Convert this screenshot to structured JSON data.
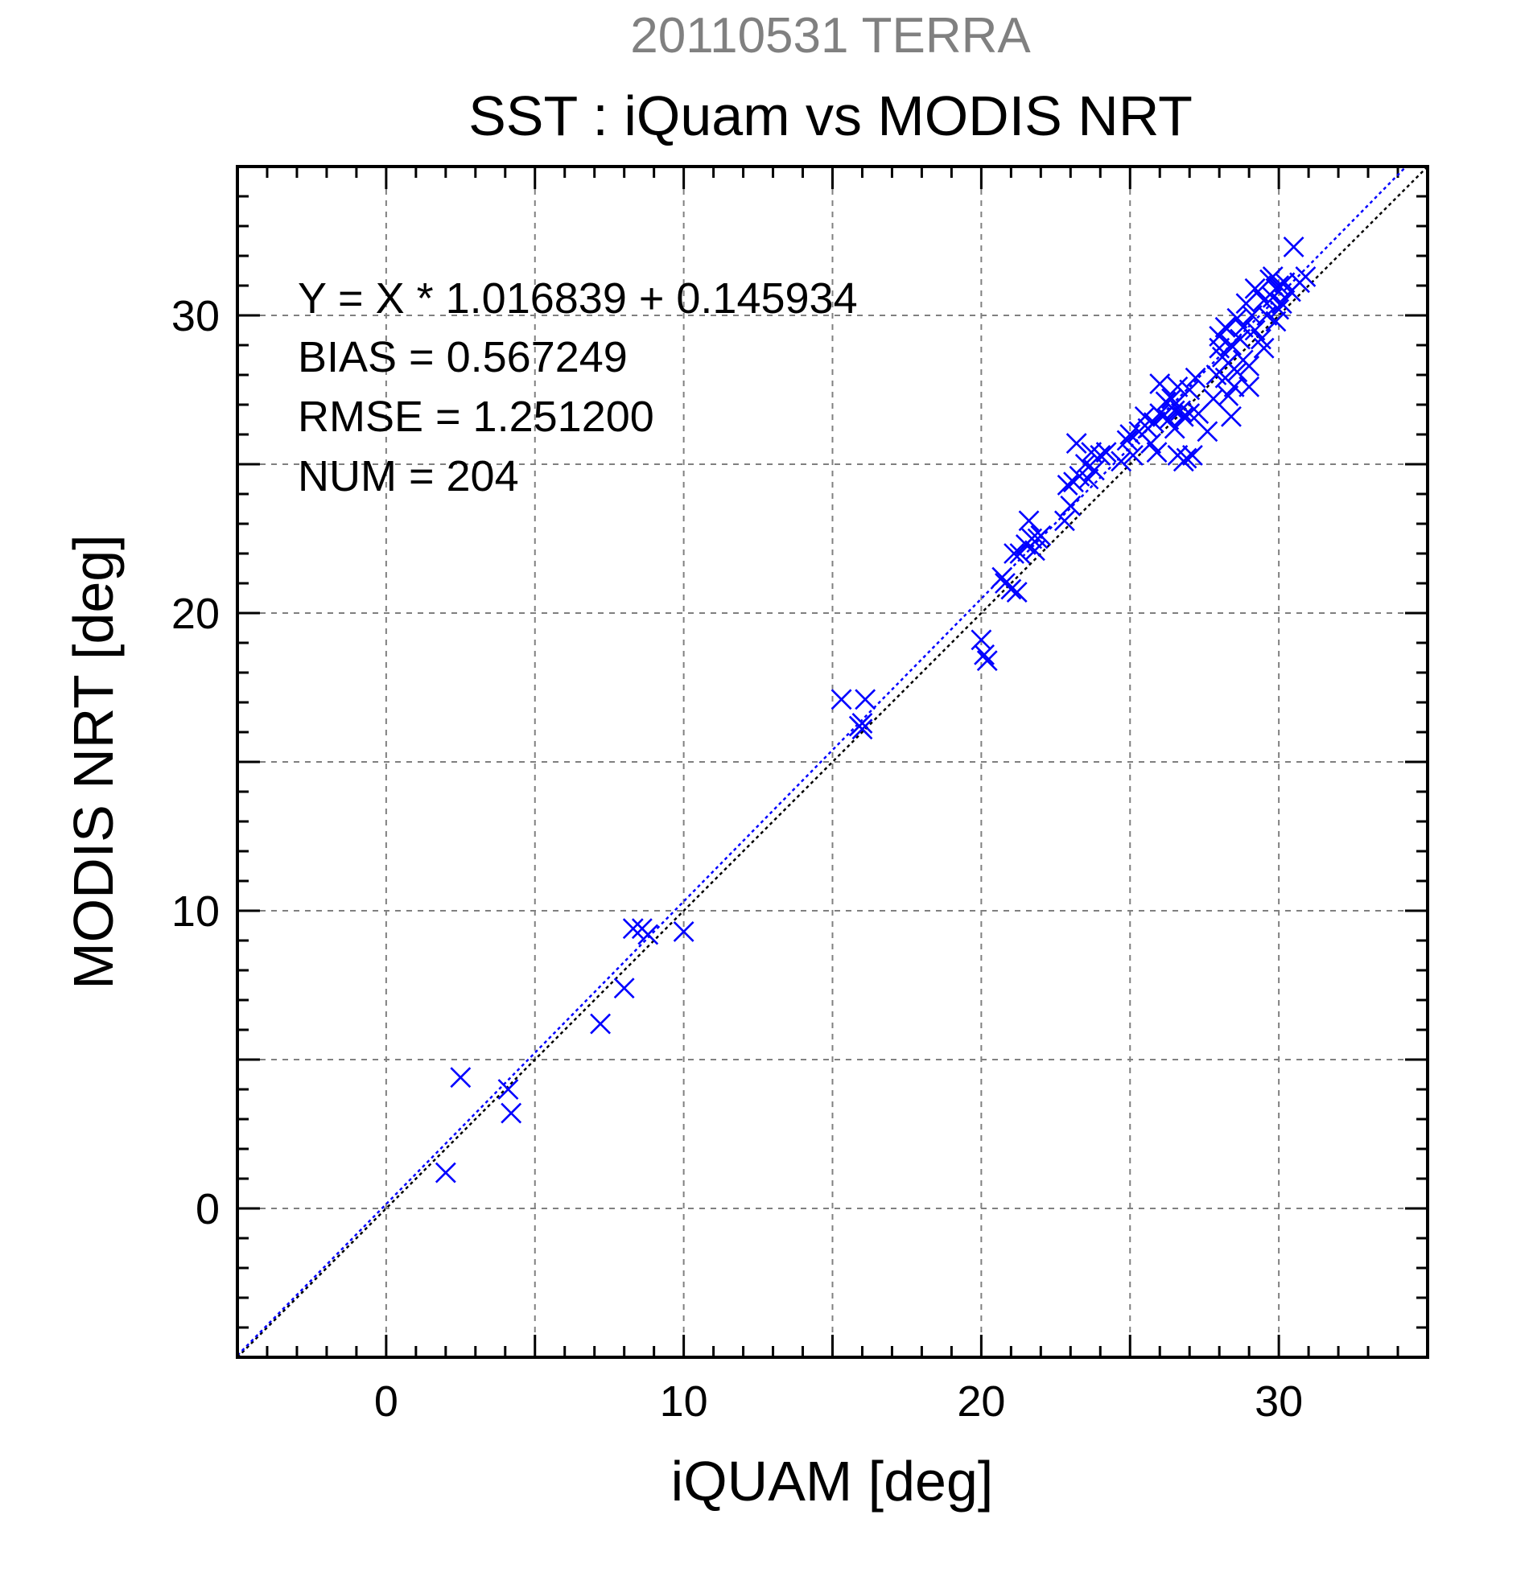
{
  "chart_data": {
    "type": "scatter",
    "date_title": "20110531 TERRA",
    "title": "SST : iQuam vs MODIS NRT",
    "xlabel": "iQUAM [deg]",
    "ylabel": "MODIS NRT [deg]",
    "xlim": [
      -5,
      35
    ],
    "ylim": [
      -5,
      35
    ],
    "xticks": [
      0,
      10,
      20,
      30
    ],
    "yticks": [
      0,
      10,
      20,
      30
    ],
    "grid": true,
    "stats": {
      "equation": "Y = X * 1.016839 + 0.145934",
      "bias": "BIAS = 0.567249",
      "rmse": "RMSE = 1.251200",
      "num": "NUM = 204"
    },
    "regression": {
      "slope": 1.016839,
      "intercept": 0.145934
    },
    "colors": {
      "points": "#0000ff",
      "regression": "#0000ff",
      "identity": "#000000",
      "grid": "#808080",
      "date_title": "#808080"
    },
    "points": [
      [
        2.0,
        1.2
      ],
      [
        2.5,
        4.4
      ],
      [
        4.1,
        4.0
      ],
      [
        4.2,
        3.2
      ],
      [
        7.2,
        6.2
      ],
      [
        8.0,
        7.4
      ],
      [
        8.3,
        9.4
      ],
      [
        8.6,
        9.4
      ],
      [
        8.8,
        9.2
      ],
      [
        10.0,
        9.3
      ],
      [
        15.3,
        17.1
      ],
      [
        15.9,
        16.2
      ],
      [
        16.0,
        16.3
      ],
      [
        16.1,
        17.1
      ],
      [
        16.0,
        16.1
      ],
      [
        20.0,
        19.1
      ],
      [
        20.1,
        18.6
      ],
      [
        20.2,
        18.4
      ],
      [
        20.7,
        21.2
      ],
      [
        20.8,
        21.0
      ],
      [
        21.0,
        20.8
      ],
      [
        21.2,
        20.7
      ],
      [
        21.1,
        22.0
      ],
      [
        21.3,
        22.0
      ],
      [
        21.5,
        22.3
      ],
      [
        21.6,
        23.1
      ],
      [
        21.7,
        22.5
      ],
      [
        21.8,
        22.1
      ],
      [
        21.9,
        22.5
      ],
      [
        22.0,
        22.6
      ],
      [
        22.8,
        23.1
      ],
      [
        23.0,
        23.6
      ],
      [
        22.9,
        24.3
      ],
      [
        23.1,
        24.4
      ],
      [
        23.3,
        24.6
      ],
      [
        23.2,
        25.7
      ],
      [
        23.5,
        25.0
      ],
      [
        23.6,
        24.5
      ],
      [
        23.7,
        25.4
      ],
      [
        23.8,
        24.8
      ],
      [
        24.0,
        25.3
      ],
      [
        24.2,
        25.4
      ],
      [
        24.7,
        25.1
      ],
      [
        24.9,
        25.8
      ],
      [
        25.0,
        26.0
      ],
      [
        25.1,
        25.3
      ],
      [
        25.3,
        26.1
      ],
      [
        25.5,
        26.6
      ],
      [
        25.6,
        26.2
      ],
      [
        25.7,
        25.7
      ],
      [
        25.8,
        26.4
      ],
      [
        25.9,
        25.4
      ],
      [
        26.0,
        26.7
      ],
      [
        26.1,
        26.6
      ],
      [
        26.2,
        27.1
      ],
      [
        26.3,
        26.5
      ],
      [
        26.4,
        26.9
      ],
      [
        26.5,
        26.2
      ],
      [
        26.6,
        27.6
      ],
      [
        26.7,
        26.8
      ],
      [
        26.8,
        26.6
      ],
      [
        26.9,
        25.2
      ],
      [
        27.0,
        26.7
      ],
      [
        27.1,
        25.3
      ],
      [
        27.2,
        27.9
      ],
      [
        27.3,
        26.7
      ],
      [
        26.0,
        27.7
      ],
      [
        26.4,
        27.2
      ],
      [
        26.5,
        26.8
      ],
      [
        26.6,
        25.3
      ],
      [
        26.8,
        25.1
      ],
      [
        27.0,
        27.5
      ],
      [
        27.6,
        26.1
      ],
      [
        27.8,
        27.2
      ],
      [
        27.9,
        28.0
      ],
      [
        28.0,
        29.3
      ],
      [
        28.1,
        28.6
      ],
      [
        28.2,
        29.6
      ],
      [
        28.3,
        28.4
      ],
      [
        28.4,
        29.0
      ],
      [
        28.5,
        27.6
      ],
      [
        28.6,
        28.1
      ],
      [
        28.7,
        29.2
      ],
      [
        28.4,
        26.6
      ],
      [
        28.2,
        27.9
      ],
      [
        28.3,
        27.3
      ],
      [
        28.8,
        29.6
      ],
      [
        28.9,
        30.4
      ],
      [
        29.0,
        28.3
      ],
      [
        29.1,
        30.0
      ],
      [
        29.2,
        29.5
      ],
      [
        29.3,
        30.8
      ],
      [
        29.4,
        29.2
      ],
      [
        29.5,
        30.5
      ],
      [
        29.6,
        30.0
      ],
      [
        29.7,
        31.2
      ],
      [
        29.8,
        30.6
      ],
      [
        29.9,
        29.8
      ],
      [
        30.0,
        31.0
      ],
      [
        30.1,
        30.4
      ],
      [
        30.2,
        31.1
      ],
      [
        30.4,
        30.8
      ],
      [
        30.5,
        32.3
      ],
      [
        30.7,
        31.1
      ],
      [
        30.9,
        31.3
      ],
      [
        29.0,
        27.6
      ],
      [
        28.6,
        29.9
      ],
      [
        29.5,
        28.9
      ],
      [
        30.0,
        30.2
      ],
      [
        29.8,
        31.3
      ],
      [
        28.0,
        28.9
      ],
      [
        28.8,
        28.5
      ],
      [
        29.2,
        30.9
      ],
      [
        29.9,
        30.9
      ]
    ]
  }
}
